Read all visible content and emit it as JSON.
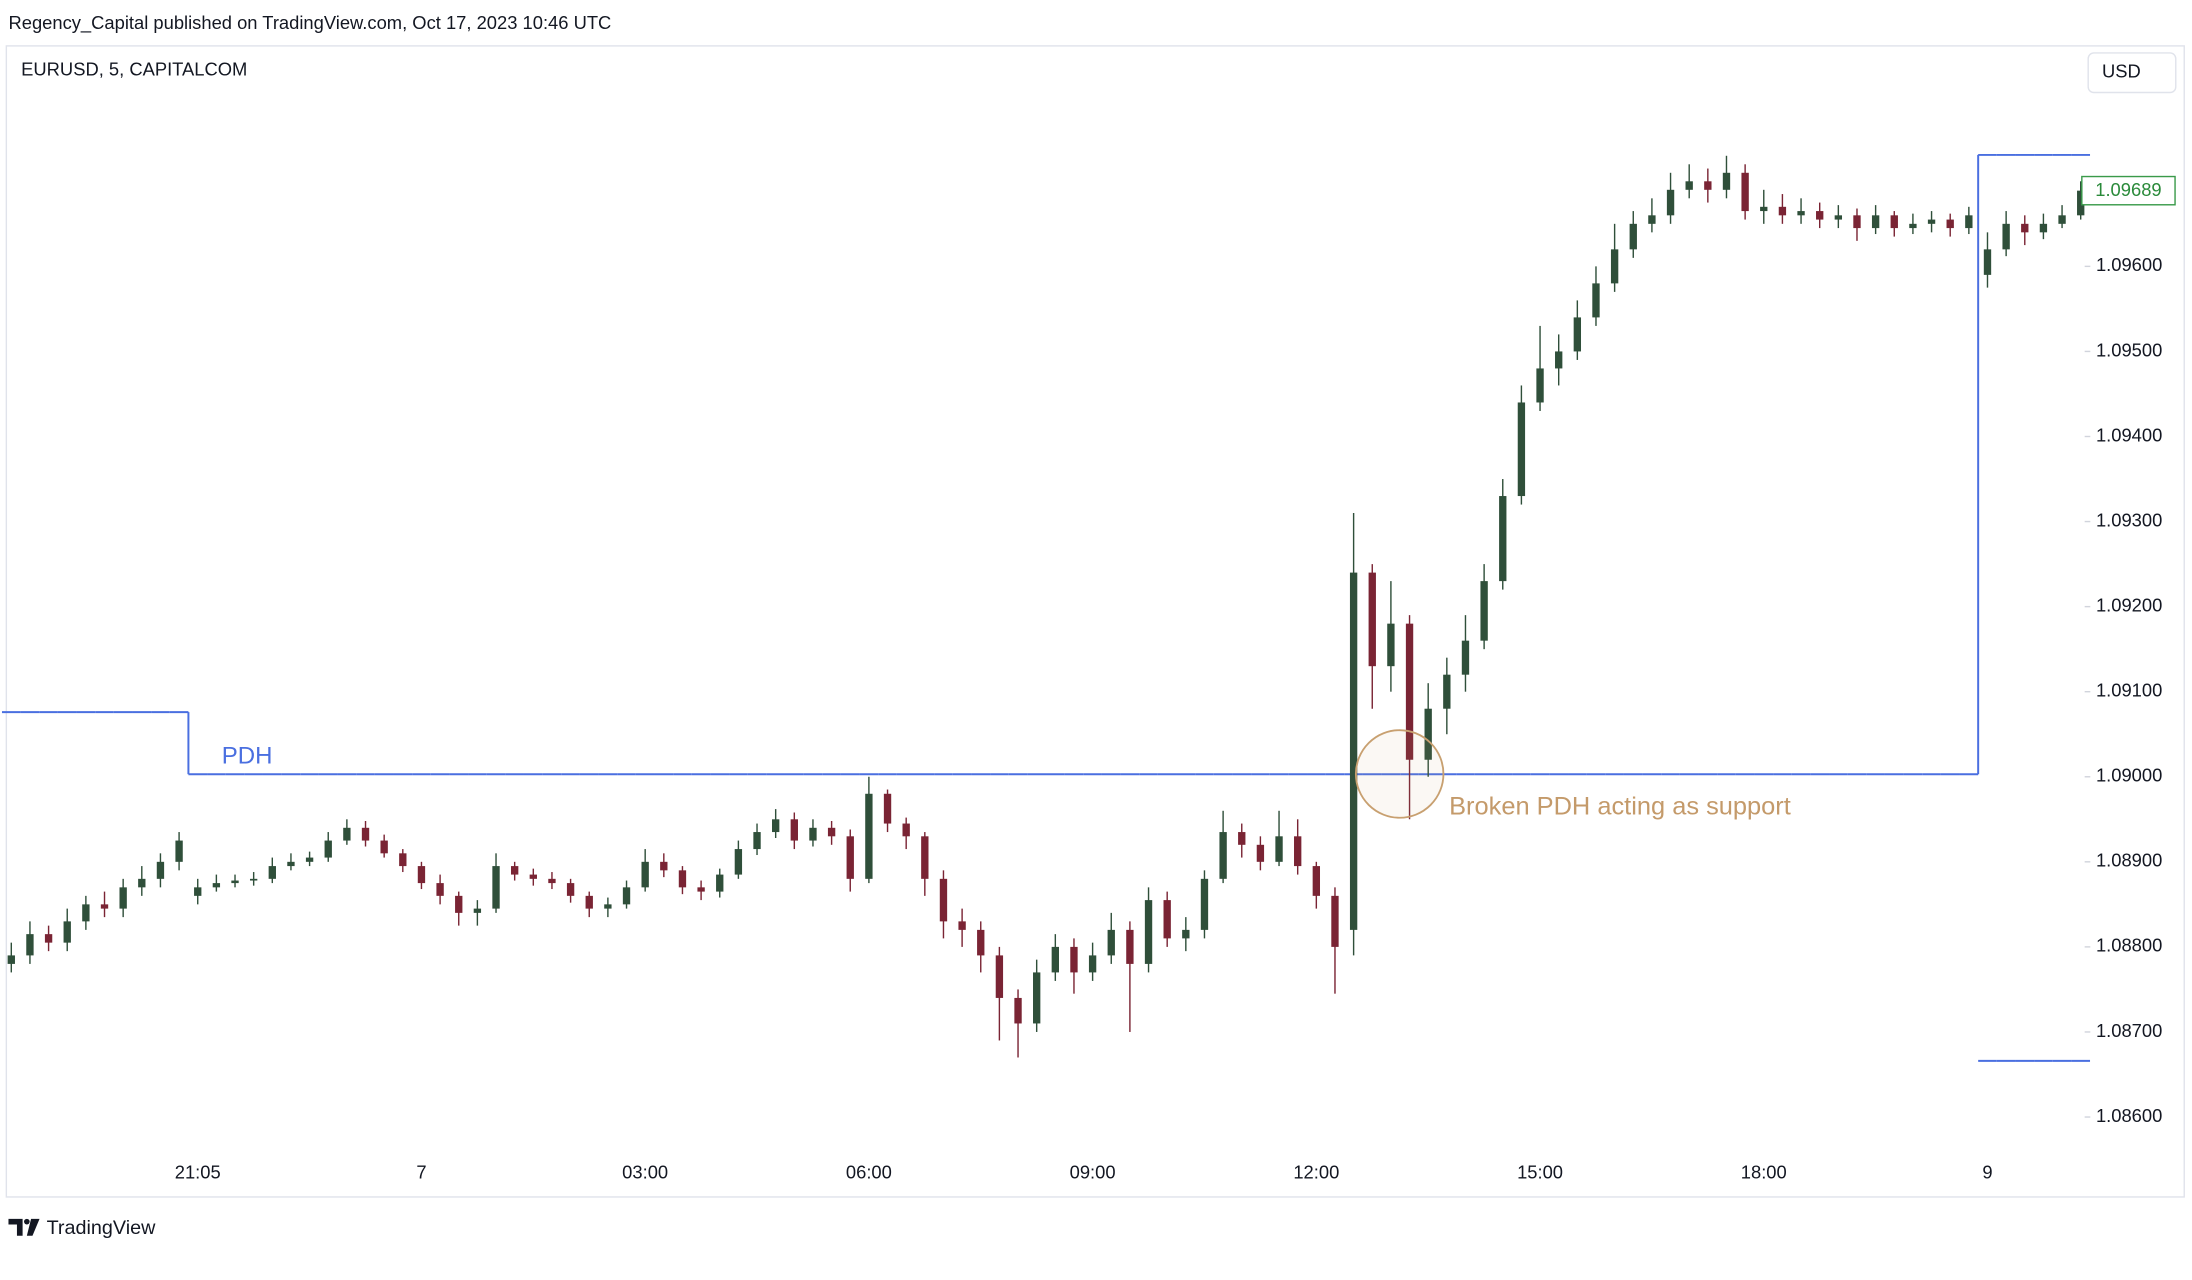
{
  "header": "Regency_Capital published on TradingView.com, Oct 17, 2023 10:46 UTC",
  "footer": "TradingView",
  "chart_data": {
    "type": "candlestick",
    "title": "EURUSD, 5, CAPITALCOM",
    "currency": "USD",
    "up_color": "#2f4f3a",
    "down_color": "#7a2434",
    "categories": [
      null,
      null,
      null,
      null,
      null,
      null,
      null,
      null,
      null,
      null,
      "21:05",
      null,
      null,
      null,
      null,
      null,
      null,
      null,
      null,
      null,
      null,
      null,
      "7",
      null,
      null,
      null,
      null,
      null,
      null,
      null,
      null,
      null,
      null,
      null,
      "03:00",
      null,
      null,
      null,
      null,
      null,
      null,
      null,
      null,
      null,
      null,
      null,
      "06:00",
      null,
      null,
      null,
      null,
      null,
      null,
      null,
      null,
      null,
      null,
      null,
      "09:00",
      null,
      null,
      null,
      null,
      null,
      null,
      null,
      null,
      null,
      null,
      null,
      "12:00",
      null,
      null,
      null,
      null,
      null,
      null,
      null,
      null,
      null,
      null,
      null,
      "15:00",
      null,
      null,
      null,
      null,
      null,
      null,
      null,
      null,
      null,
      null,
      null,
      "18:00",
      null,
      null,
      null,
      null,
      null,
      null,
      null,
      null,
      null,
      null,
      null,
      "9",
      null,
      null,
      null,
      null,
      null
    ],
    "open": [
      1.0878,
      1.0879,
      1.08815,
      1.08805,
      1.0883,
      1.0885,
      1.08845,
      1.0887,
      1.0888,
      1.089,
      1.0886,
      1.0887,
      1.08875,
      1.08878,
      1.0888,
      1.08895,
      1.089,
      1.08905,
      1.08925,
      1.0894,
      1.08925,
      1.0891,
      1.08895,
      1.08875,
      1.0886,
      1.0884,
      1.08845,
      1.08895,
      1.08885,
      1.0888,
      1.08875,
      1.0886,
      1.08845,
      1.0885,
      1.0887,
      1.089,
      1.0889,
      1.0887,
      1.08865,
      1.08885,
      1.08915,
      1.08935,
      1.0895,
      1.08925,
      1.0894,
      1.0893,
      1.0888,
      1.0898,
      1.08945,
      1.0893,
      1.0888,
      1.0883,
      1.0882,
      1.0879,
      1.0874,
      1.0871,
      1.0877,
      1.088,
      1.0877,
      1.0879,
      1.0882,
      1.0878,
      1.08855,
      1.0881,
      1.0882,
      1.0888,
      1.08935,
      1.0892,
      1.089,
      1.0893,
      1.08895,
      1.0886,
      1.0882,
      1.0924,
      1.0913,
      1.0918,
      1.0902,
      1.0908,
      1.0912,
      1.0916,
      1.0923,
      1.0933,
      1.0944,
      1.0948,
      1.095,
      1.0954,
      1.0958,
      1.0962,
      1.0965,
      1.0966,
      1.0969,
      1.097,
      1.0969,
      1.0971,
      1.09665,
      1.0967,
      1.0966,
      1.09665,
      1.09655,
      1.0966,
      1.09645,
      1.0966,
      1.09645,
      1.0965,
      1.09655,
      1.09645,
      1.0959,
      1.0962,
      1.0965,
      1.0964,
      1.0965,
      1.0966
    ],
    "high": [
      1.08805,
      1.0883,
      1.08825,
      1.08845,
      1.0886,
      1.08865,
      1.0888,
      1.08895,
      1.0891,
      1.08935,
      1.0888,
      1.08885,
      1.08885,
      1.08888,
      1.08905,
      1.0891,
      1.08912,
      1.08935,
      1.0895,
      1.08948,
      1.08932,
      1.08915,
      1.089,
      1.08885,
      1.08865,
      1.08855,
      1.0891,
      1.089,
      1.08892,
      1.08888,
      1.0888,
      1.08865,
      1.08858,
      1.08878,
      1.08915,
      1.0891,
      1.08895,
      1.08878,
      1.08892,
      1.08925,
      1.08945,
      1.08962,
      1.08958,
      1.0895,
      1.08948,
      1.08938,
      1.09,
      1.08985,
      1.08952,
      1.08935,
      1.0889,
      1.08845,
      1.0883,
      1.088,
      1.0875,
      1.08785,
      1.08815,
      1.0881,
      1.08805,
      1.0884,
      1.0883,
      1.0887,
      1.08865,
      1.08835,
      1.0889,
      1.0896,
      1.08945,
      1.0893,
      1.0896,
      1.0895,
      1.089,
      1.0887,
      1.0931,
      1.0925,
      1.0923,
      1.0919,
      1.0911,
      1.0914,
      1.0919,
      1.0925,
      1.0935,
      1.0946,
      1.0953,
      1.0952,
      1.0956,
      1.096,
      1.0965,
      1.09665,
      1.0968,
      1.0971,
      1.0972,
      1.09715,
      1.0973,
      1.0972,
      1.0969,
      1.09685,
      1.0968,
      1.09675,
      1.09672,
      1.09668,
      1.09672,
      1.09665,
      1.09662,
      1.09665,
      1.09662,
      1.0967,
      1.0964,
      1.09665,
      1.0966,
      1.09662,
      1.09672,
      1.097
    ],
    "low": [
      1.0877,
      1.0878,
      1.08795,
      1.08795,
      1.0882,
      1.08835,
      1.08835,
      1.0886,
      1.0887,
      1.0889,
      1.0885,
      1.08865,
      1.0887,
      1.08872,
      1.08875,
      1.0889,
      1.08895,
      1.089,
      1.0892,
      1.08918,
      1.08905,
      1.08888,
      1.08868,
      1.0885,
      1.08825,
      1.08825,
      1.0884,
      1.08878,
      1.08872,
      1.08868,
      1.08852,
      1.08835,
      1.08835,
      1.08845,
      1.08865,
      1.08882,
      1.08862,
      1.08855,
      1.08858,
      1.0888,
      1.08908,
      1.08928,
      1.08915,
      1.08918,
      1.0892,
      1.08865,
      1.08875,
      1.08935,
      1.08915,
      1.0886,
      1.0881,
      1.088,
      1.0877,
      1.0869,
      1.0867,
      1.087,
      1.0876,
      1.08745,
      1.0876,
      1.0878,
      1.087,
      1.0877,
      1.088,
      1.08795,
      1.0881,
      1.08875,
      1.08905,
      1.0889,
      1.08895,
      1.08885,
      1.08845,
      1.08745,
      1.0879,
      1.0908,
      1.091,
      1.0895,
      1.09,
      1.0905,
      1.091,
      1.0915,
      1.0922,
      1.0932,
      1.0943,
      1.0946,
      1.0949,
      1.0953,
      1.0957,
      1.0961,
      1.0964,
      1.0965,
      1.0968,
      1.09675,
      1.0968,
      1.09655,
      1.0965,
      1.0965,
      1.0965,
      1.09645,
      1.09645,
      1.0963,
      1.09638,
      1.09635,
      1.09638,
      1.0964,
      1.09635,
      1.09638,
      1.09575,
      1.09612,
      1.09625,
      1.09632,
      1.09645,
      1.09655
    ],
    "close": [
      1.0879,
      1.08815,
      1.08805,
      1.0883,
      1.0885,
      1.08845,
      1.0887,
      1.0888,
      1.089,
      1.08925,
      1.0887,
      1.08875,
      1.08878,
      1.0888,
      1.08895,
      1.089,
      1.08905,
      1.08925,
      1.0894,
      1.08925,
      1.0891,
      1.08895,
      1.08875,
      1.0886,
      1.0884,
      1.08845,
      1.08895,
      1.08885,
      1.0888,
      1.08875,
      1.0886,
      1.08845,
      1.0885,
      1.0887,
      1.089,
      1.0889,
      1.0887,
      1.08865,
      1.08885,
      1.08915,
      1.08935,
      1.0895,
      1.08925,
      1.0894,
      1.0893,
      1.0888,
      1.0898,
      1.08945,
      1.0893,
      1.0888,
      1.0883,
      1.0882,
      1.0879,
      1.0874,
      1.0871,
      1.0877,
      1.088,
      1.0877,
      1.0879,
      1.0882,
      1.0878,
      1.08855,
      1.0881,
      1.0882,
      1.0888,
      1.08935,
      1.0892,
      1.089,
      1.0893,
      1.08895,
      1.0886,
      1.088,
      1.0924,
      1.0913,
      1.0918,
      1.0902,
      1.0908,
      1.0912,
      1.0916,
      1.0923,
      1.0933,
      1.0944,
      1.0948,
      1.095,
      1.0954,
      1.0958,
      1.0962,
      1.0965,
      1.0966,
      1.0969,
      1.097,
      1.0969,
      1.0971,
      1.09665,
      1.0967,
      1.0966,
      1.09665,
      1.09655,
      1.0966,
      1.09645,
      1.0966,
      1.09645,
      1.0965,
      1.09655,
      1.09645,
      1.0966,
      1.0962,
      1.0965,
      1.0964,
      1.0965,
      1.0966,
      1.09689
    ],
    "lines": [
      {
        "color": "#4a6fe0",
        "values": [
          1.09076,
          1.09076,
          1.09076,
          1.09076,
          1.09076,
          1.09076,
          1.09076,
          1.09076,
          1.09076,
          1.09076,
          1.09003,
          1.09003,
          1.09003,
          1.09003,
          1.09003,
          1.09003,
          1.09003,
          1.09003,
          1.09003,
          1.09003,
          1.09003,
          1.09003,
          1.09003,
          1.09003,
          1.09003,
          1.09003,
          1.09003,
          1.09003,
          1.09003,
          1.09003,
          1.09003,
          1.09003,
          1.09003,
          1.09003,
          1.09003,
          1.09003,
          1.09003,
          1.09003,
          1.09003,
          1.09003,
          1.09003,
          1.09003,
          1.09003,
          1.09003,
          1.09003,
          1.09003,
          1.09003,
          1.09003,
          1.09003,
          1.09003,
          1.09003,
          1.09003,
          1.09003,
          1.09003,
          1.09003,
          1.09003,
          1.09003,
          1.09003,
          1.09003,
          1.09003,
          1.09003,
          1.09003,
          1.09003,
          1.09003,
          1.09003,
          1.09003,
          1.09003,
          1.09003,
          1.09003,
          1.09003,
          1.09003,
          1.09003,
          1.09003,
          1.09003,
          1.09003,
          1.09003,
          1.09003,
          1.09003,
          1.09003,
          1.09003,
          1.09003,
          1.09003,
          1.09003,
          1.09003,
          1.09003,
          1.09003,
          1.09003,
          1.09003,
          1.09003,
          1.09003,
          1.09003,
          1.09003,
          1.09003,
          1.09003,
          1.09003,
          1.09003,
          1.09003,
          1.09003,
          1.09003,
          1.09003,
          1.09003,
          1.09003,
          1.09003,
          1.09003,
          1.09003,
          1.09003,
          1.09731,
          1.09731,
          1.09731,
          1.09731,
          1.09731,
          1.09731
        ]
      },
      {
        "color": "#4a6fe0",
        "values": [
          null,
          null,
          null,
          null,
          null,
          null,
          null,
          null,
          null,
          null,
          null,
          null,
          null,
          null,
          null,
          null,
          null,
          null,
          null,
          null,
          null,
          null,
          null,
          null,
          null,
          null,
          null,
          null,
          null,
          null,
          null,
          null,
          null,
          null,
          null,
          null,
          null,
          null,
          null,
          null,
          null,
          null,
          null,
          null,
          null,
          null,
          null,
          null,
          null,
          null,
          null,
          null,
          null,
          null,
          null,
          null,
          null,
          null,
          null,
          null,
          null,
          null,
          null,
          null,
          null,
          null,
          null,
          null,
          null,
          null,
          null,
          null,
          null,
          null,
          null,
          null,
          null,
          null,
          null,
          null,
          null,
          null,
          null,
          null,
          null,
          null,
          null,
          null,
          null,
          null,
          null,
          null,
          null,
          null,
          null,
          null,
          null,
          null,
          null,
          null,
          null,
          null,
          null,
          null,
          null,
          null,
          1.08666,
          1.08666,
          1.08666,
          1.08666,
          1.08666,
          1.08666
        ]
      }
    ],
    "line_label": "PDH",
    "annotation": "Broken PDH acting as support",
    "ylim": [
      1.0856,
      1.0986
    ],
    "yticks": [
      {
        "value": 1.086,
        "label": "1.08600"
      },
      {
        "value": 1.087,
        "label": "1.08700"
      },
      {
        "value": 1.088,
        "label": "1.08800"
      },
      {
        "value": 1.089,
        "label": "1.08900"
      },
      {
        "value": 1.09,
        "label": "1.09000"
      },
      {
        "value": 1.091,
        "label": "1.09100"
      },
      {
        "value": 1.092,
        "label": "1.09200"
      },
      {
        "value": 1.093,
        "label": "1.09300"
      },
      {
        "value": 1.094,
        "label": "1.09400"
      },
      {
        "value": 1.095,
        "label": "1.09500"
      },
      {
        "value": 1.096,
        "label": "1.09600"
      }
    ],
    "grid": false
  }
}
